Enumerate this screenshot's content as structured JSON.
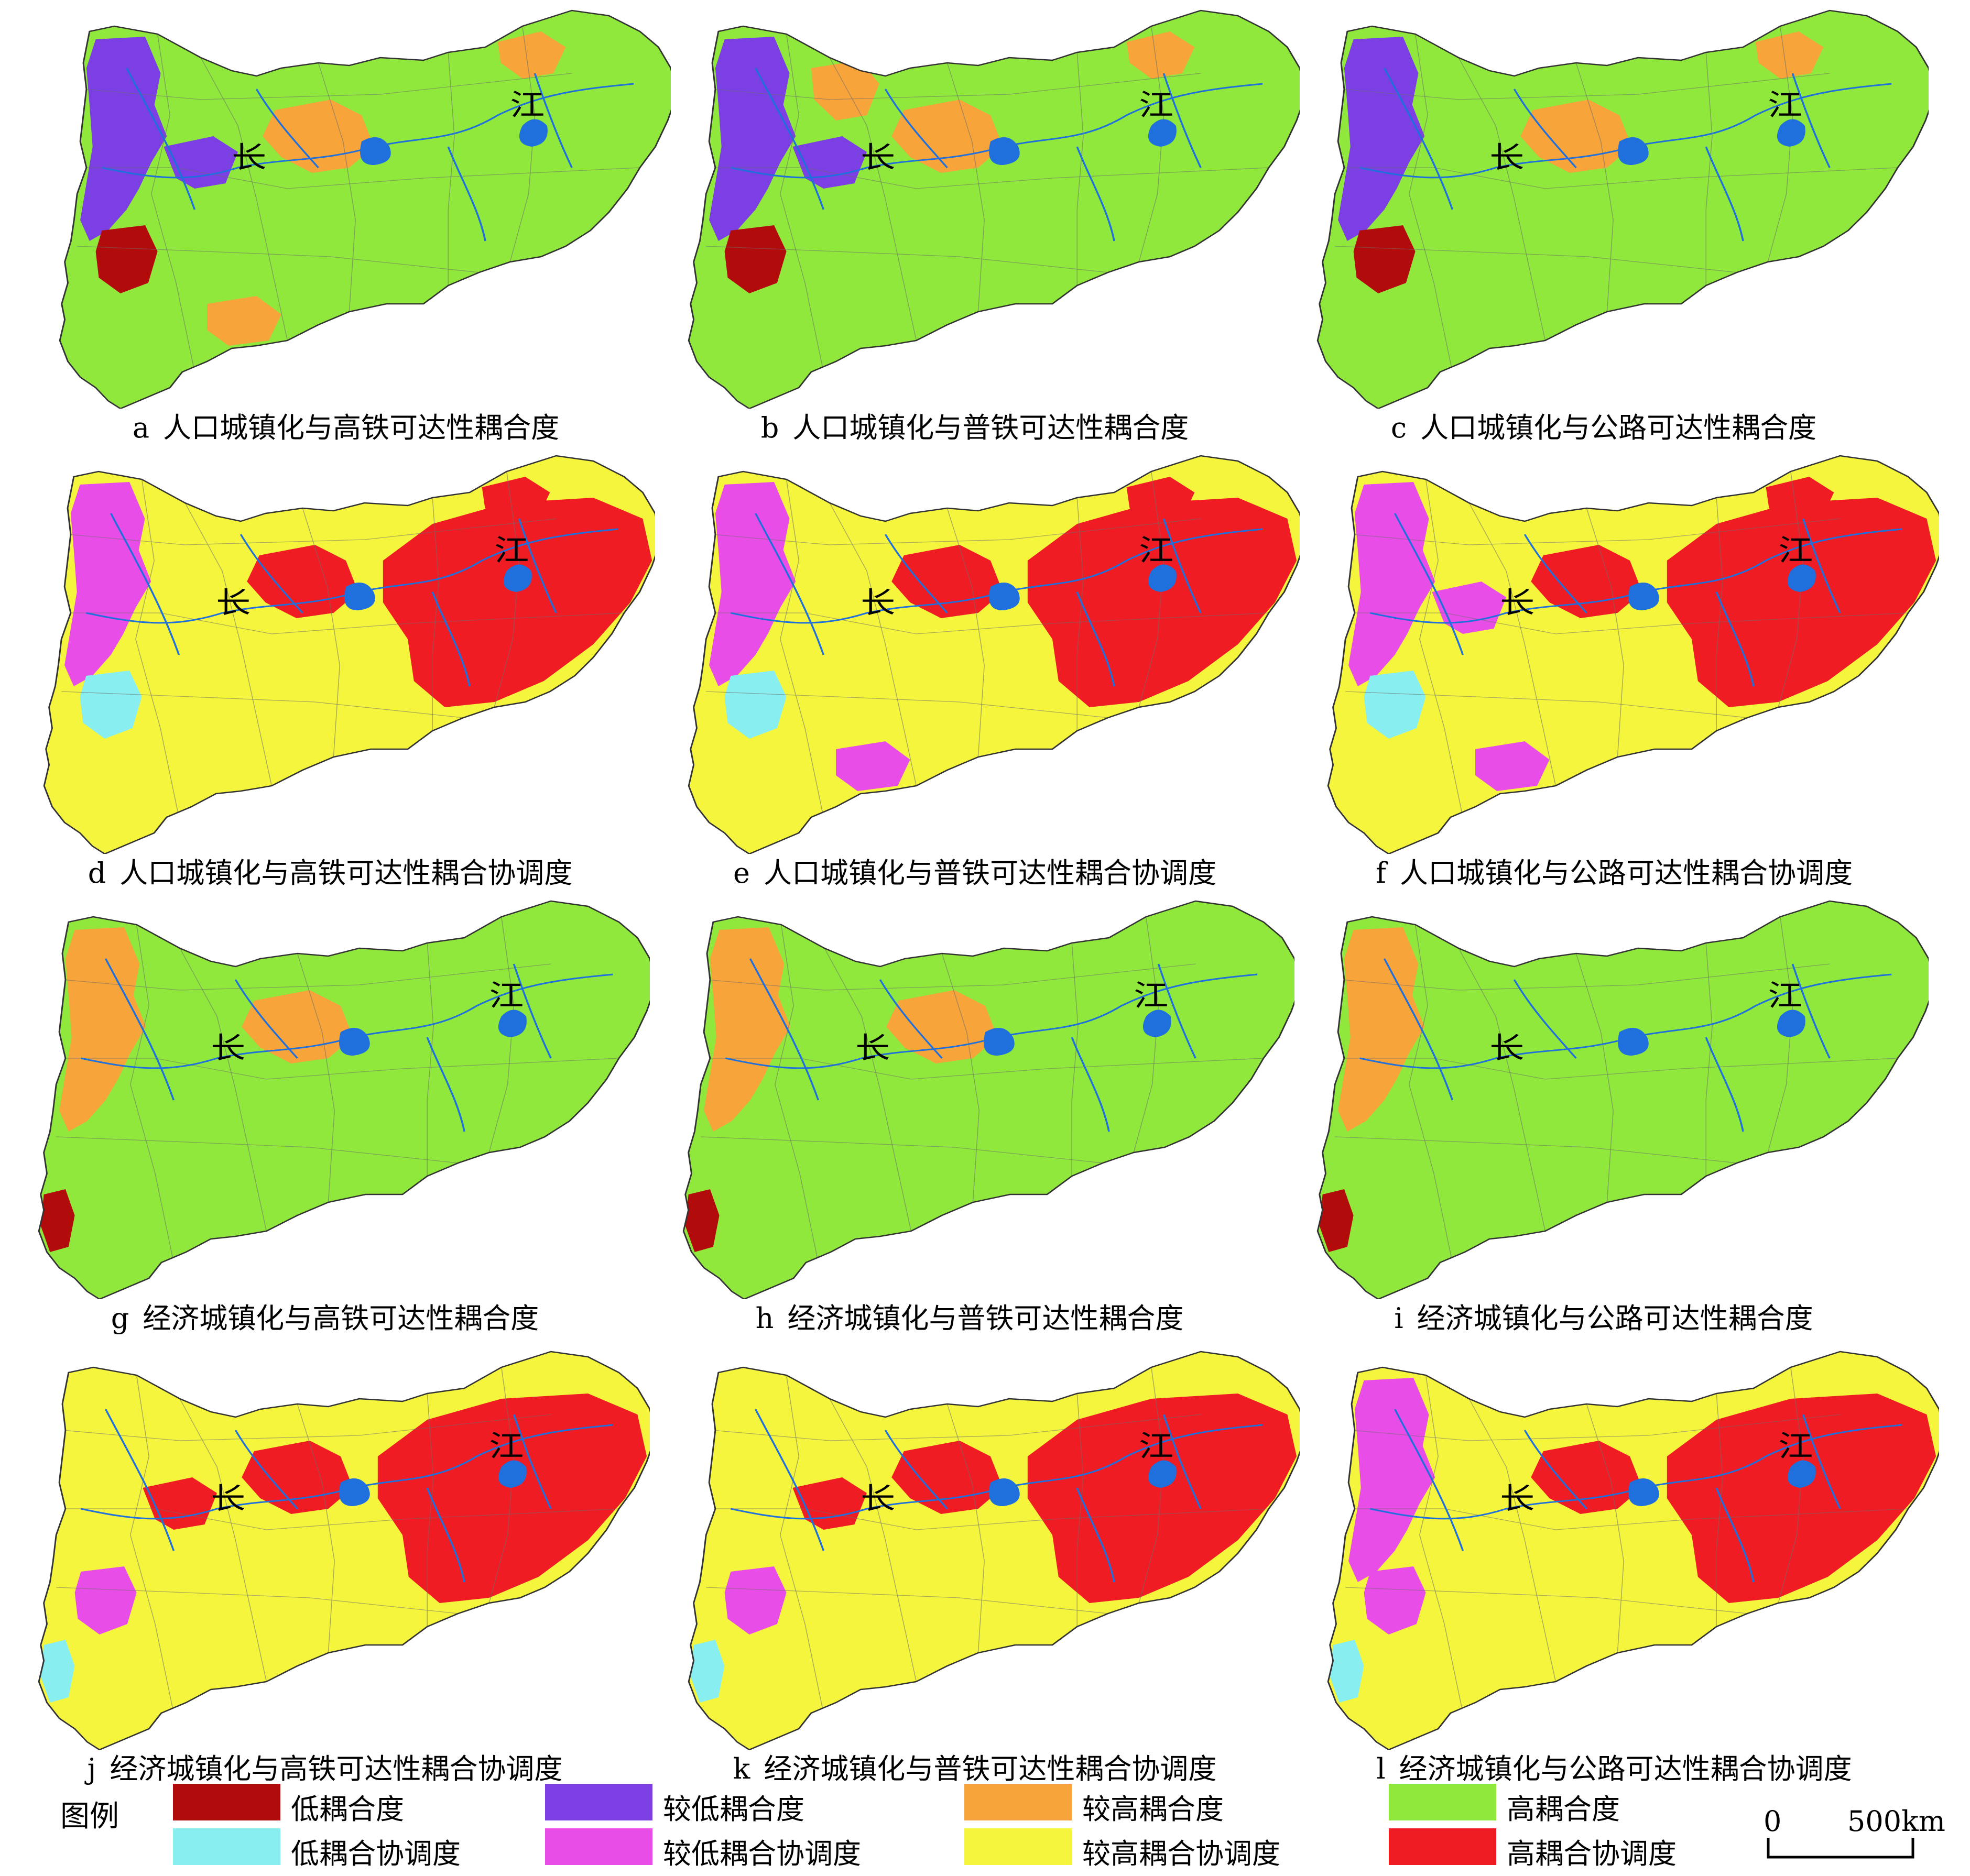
{
  "figure": {
    "map_labels": {
      "chang": "长",
      "jiang": "江"
    },
    "panels": [
      {
        "letter": "a",
        "caption": "人口城镇化与高铁可达性耦合度",
        "kind": "coupling",
        "base": "high_coupling",
        "patches": [
          {
            "cat": "lower_coupling",
            "shape": "west"
          },
          {
            "cat": "lower_coupling",
            "shape": "centerW"
          },
          {
            "cat": "low_coupling",
            "shape": "sw"
          },
          {
            "cat": "higher_coupling",
            "shape": "mid"
          },
          {
            "cat": "higher_coupling",
            "shape": "ne"
          },
          {
            "cat": "higher_coupling",
            "shape": "south"
          }
        ]
      },
      {
        "letter": "b",
        "caption": "人口城镇化与普铁可达性耦合度",
        "kind": "coupling",
        "base": "high_coupling",
        "patches": [
          {
            "cat": "lower_coupling",
            "shape": "west"
          },
          {
            "cat": "lower_coupling",
            "shape": "centerW"
          },
          {
            "cat": "low_coupling",
            "shape": "sw"
          },
          {
            "cat": "higher_coupling",
            "shape": "mid"
          },
          {
            "cat": "higher_coupling",
            "shape": "north"
          },
          {
            "cat": "higher_coupling",
            "shape": "ne"
          }
        ]
      },
      {
        "letter": "c",
        "caption": "人口城镇化与公路可达性耦合度",
        "kind": "coupling",
        "base": "high_coupling",
        "patches": [
          {
            "cat": "lower_coupling",
            "shape": "west"
          },
          {
            "cat": "low_coupling",
            "shape": "sw"
          },
          {
            "cat": "higher_coupling",
            "shape": "mid"
          },
          {
            "cat": "higher_coupling",
            "shape": "ne"
          }
        ]
      },
      {
        "letter": "d",
        "caption": "人口城镇化与高铁可达性耦合协调度",
        "kind": "coordination",
        "base": "higher_coord",
        "patches": [
          {
            "cat": "lower_coord",
            "shape": "west"
          },
          {
            "cat": "low_coord",
            "shape": "sw"
          },
          {
            "cat": "high_coord",
            "shape": "east"
          },
          {
            "cat": "high_coord",
            "shape": "mid"
          },
          {
            "cat": "high_coord",
            "shape": "ne"
          }
        ]
      },
      {
        "letter": "e",
        "caption": "人口城镇化与普铁可达性耦合协调度",
        "kind": "coordination",
        "base": "higher_coord",
        "patches": [
          {
            "cat": "lower_coord",
            "shape": "west"
          },
          {
            "cat": "low_coord",
            "shape": "sw"
          },
          {
            "cat": "lower_coord",
            "shape": "south"
          },
          {
            "cat": "high_coord",
            "shape": "east"
          },
          {
            "cat": "high_coord",
            "shape": "mid"
          },
          {
            "cat": "high_coord",
            "shape": "ne"
          }
        ]
      },
      {
        "letter": "f",
        "caption": "人口城镇化与公路可达性耦合协调度",
        "kind": "coordination",
        "base": "higher_coord",
        "patches": [
          {
            "cat": "lower_coord",
            "shape": "west"
          },
          {
            "cat": "lower_coord",
            "shape": "centerW"
          },
          {
            "cat": "low_coord",
            "shape": "sw"
          },
          {
            "cat": "lower_coord",
            "shape": "south"
          },
          {
            "cat": "high_coord",
            "shape": "east"
          },
          {
            "cat": "high_coord",
            "shape": "mid"
          },
          {
            "cat": "high_coord",
            "shape": "ne"
          }
        ]
      },
      {
        "letter": "g",
        "caption": "经济城镇化与高铁可达性耦合度",
        "kind": "coupling",
        "base": "high_coupling",
        "patches": [
          {
            "cat": "higher_coupling",
            "shape": "west"
          },
          {
            "cat": "low_coupling",
            "shape": "swEdge"
          },
          {
            "cat": "higher_coupling",
            "shape": "mid"
          }
        ]
      },
      {
        "letter": "h",
        "caption": "经济城镇化与普铁可达性耦合度",
        "kind": "coupling",
        "base": "high_coupling",
        "patches": [
          {
            "cat": "higher_coupling",
            "shape": "west"
          },
          {
            "cat": "low_coupling",
            "shape": "swEdge"
          },
          {
            "cat": "higher_coupling",
            "shape": "mid"
          }
        ]
      },
      {
        "letter": "i",
        "caption": "经济城镇化与公路可达性耦合度",
        "kind": "coupling",
        "base": "high_coupling",
        "patches": [
          {
            "cat": "higher_coupling",
            "shape": "west"
          },
          {
            "cat": "low_coupling",
            "shape": "swEdge"
          }
        ]
      },
      {
        "letter": "j",
        "caption": "经济城镇化与高铁可达性耦合协调度",
        "kind": "coordination",
        "base": "higher_coord",
        "patches": [
          {
            "cat": "high_coord",
            "shape": "east"
          },
          {
            "cat": "high_coord",
            "shape": "mid"
          },
          {
            "cat": "high_coord",
            "shape": "centerW"
          },
          {
            "cat": "lower_coord",
            "shape": "sw"
          },
          {
            "cat": "low_coord",
            "shape": "swEdge"
          }
        ]
      },
      {
        "letter": "k",
        "caption": "经济城镇化与普铁可达性耦合协调度",
        "kind": "coordination",
        "base": "higher_coord",
        "patches": [
          {
            "cat": "high_coord",
            "shape": "east"
          },
          {
            "cat": "high_coord",
            "shape": "mid"
          },
          {
            "cat": "high_coord",
            "shape": "centerW"
          },
          {
            "cat": "lower_coord",
            "shape": "sw"
          },
          {
            "cat": "low_coord",
            "shape": "swEdge"
          }
        ]
      },
      {
        "letter": "l",
        "caption": "经济城镇化与公路可达性耦合协调度",
        "kind": "coordination",
        "base": "higher_coord",
        "patches": [
          {
            "cat": "lower_coord",
            "shape": "west"
          },
          {
            "cat": "high_coord",
            "shape": "east"
          },
          {
            "cat": "high_coord",
            "shape": "mid"
          },
          {
            "cat": "lower_coord",
            "shape": "sw"
          },
          {
            "cat": "low_coord",
            "shape": "swEdge"
          }
        ]
      }
    ]
  },
  "colors": {
    "low_coupling": "#b20b0b",
    "lower_coupling": "#7b3fe4",
    "higher_coupling": "#f7a43a",
    "high_coupling": "#8fe83b",
    "low_coord": "#88eeef",
    "lower_coord": "#e84de8",
    "higher_coord": "#f5f53d",
    "high_coord": "#ef1c24",
    "river": "#1f6fdc",
    "boundary": "#6d6d6d"
  },
  "legend": {
    "title": "图例",
    "items": [
      {
        "key": "low_coupling",
        "label": "低耦合度"
      },
      {
        "key": "lower_coupling",
        "label": "较低耦合度"
      },
      {
        "key": "higher_coupling",
        "label": "较高耦合度"
      },
      {
        "key": "high_coupling",
        "label": "高耦合度"
      },
      {
        "key": "low_coord",
        "label": "低耦合协调度"
      },
      {
        "key": "lower_coord",
        "label": "较低耦合协调度"
      },
      {
        "key": "higher_coord",
        "label": "较高耦合协调度"
      },
      {
        "key": "high_coord",
        "label": "高耦合协调度"
      }
    ]
  },
  "scale": {
    "zero": "0",
    "distance": "500km"
  }
}
